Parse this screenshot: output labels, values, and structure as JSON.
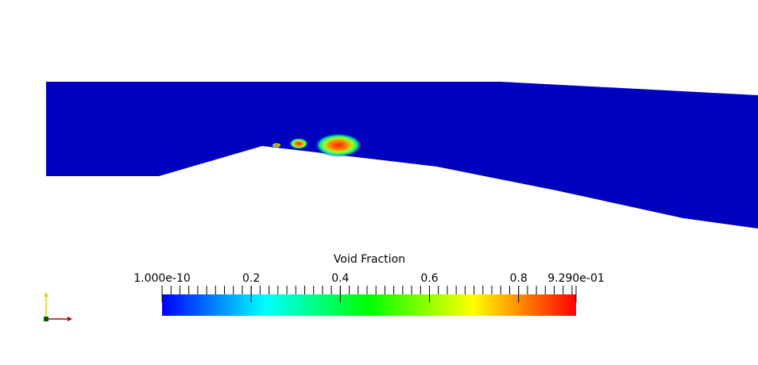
{
  "colorbar": {
    "title": "Void Fraction",
    "range": [
      1e-10,
      0.929
    ],
    "ticks": [
      {
        "value": 1e-10,
        "label": "1.000e-10"
      },
      0.2,
      0.4,
      0.6,
      0.8,
      {
        "value": 0.929,
        "label": "9.290e-01"
      }
    ],
    "colors": [
      "#0000ff",
      "#00ffff",
      "#00ff00",
      "#ffff00",
      "#ff0000"
    ]
  }
}
